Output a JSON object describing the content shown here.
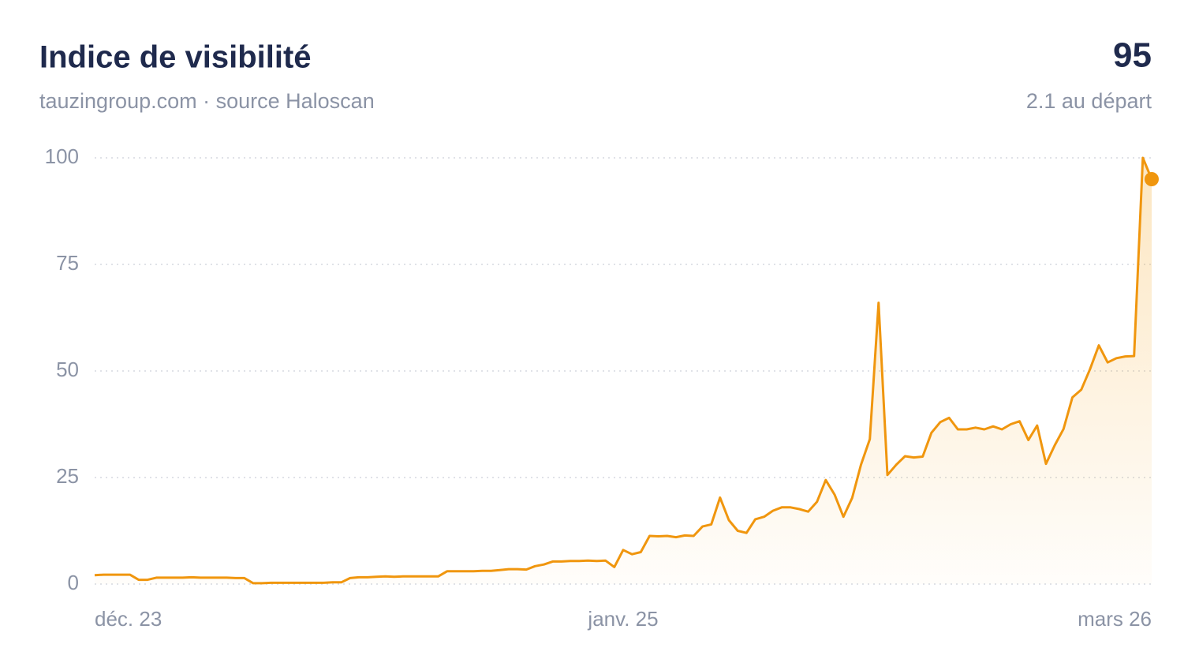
{
  "chart_data": {
    "type": "line",
    "title": "Indice de visibilité",
    "subtitle": "tauzingroup.com · source Haloscan",
    "start_note": "2.1 au départ",
    "color": "#f0960e",
    "grid": true,
    "ylim": [
      0,
      100
    ],
    "yticks": [
      0,
      25,
      50,
      75,
      100
    ],
    "categories": [
      "déc. 23",
      null,
      null,
      null,
      null,
      null,
      null,
      null,
      null,
      null,
      null,
      null,
      null,
      null,
      null,
      null,
      null,
      null,
      null,
      null,
      null,
      null,
      null,
      null,
      null,
      null,
      null,
      null,
      null,
      null,
      null,
      null,
      null,
      null,
      null,
      null,
      null,
      null,
      null,
      null,
      null,
      null,
      null,
      null,
      null,
      null,
      null,
      null,
      null,
      null,
      null,
      null,
      null,
      null,
      null,
      null,
      null,
      null,
      null,
      null,
      "janv. 25",
      null,
      null,
      null,
      null,
      null,
      null,
      null,
      null,
      null,
      null,
      null,
      null,
      null,
      null,
      null,
      null,
      null,
      null,
      null,
      null,
      null,
      null,
      null,
      null,
      null,
      null,
      null,
      null,
      null,
      null,
      null,
      null,
      null,
      null,
      null,
      null,
      null,
      null,
      null,
      null,
      null,
      null,
      null,
      null,
      null,
      null,
      null,
      null,
      null,
      null,
      null,
      null,
      null,
      null,
      null,
      null,
      null,
      null,
      null,
      "mars 26"
    ],
    "values": [
      2.1,
      2.2,
      2.2,
      2.2,
      2.2,
      1.0,
      1.0,
      1.5,
      1.5,
      1.5,
      1.5,
      1.6,
      1.5,
      1.5,
      1.5,
      1.5,
      1.4,
      1.4,
      0.2,
      0.2,
      0.3,
      0.3,
      0.3,
      0.3,
      0.3,
      0.3,
      0.3,
      0.4,
      0.4,
      1.4,
      1.6,
      1.6,
      1.7,
      1.8,
      1.7,
      1.8,
      1.8,
      1.8,
      1.8,
      1.8,
      3.0,
      3.0,
      3.0,
      3.0,
      3.1,
      3.1,
      3.3,
      3.5,
      3.5,
      3.4,
      4.2,
      4.6,
      5.3,
      5.3,
      5.4,
      5.4,
      5.5,
      5.4,
      5.5,
      4.0,
      8.0,
      7.0,
      7.5,
      11.3,
      11.2,
      11.3,
      11.0,
      11.4,
      11.3,
      13.5,
      14.0,
      20.3,
      15.0,
      12.5,
      12.0,
      15.2,
      15.8,
      17.2,
      18.0,
      18.0,
      17.6,
      17.0,
      19.3,
      24.4,
      21.0,
      15.8,
      20.2,
      28.0,
      34.0,
      66.0,
      25.6,
      28.0,
      30.0,
      29.7,
      29.9,
      35.5,
      38.0,
      39.0,
      36.3,
      36.3,
      36.7,
      36.3,
      37.0,
      36.3,
      37.5,
      38.2,
      33.8,
      37.2,
      28.2,
      32.6,
      36.4,
      43.8,
      45.6,
      50.4,
      56.0,
      52.0,
      53.0,
      53.4,
      53.5,
      100,
      95
    ]
  }
}
